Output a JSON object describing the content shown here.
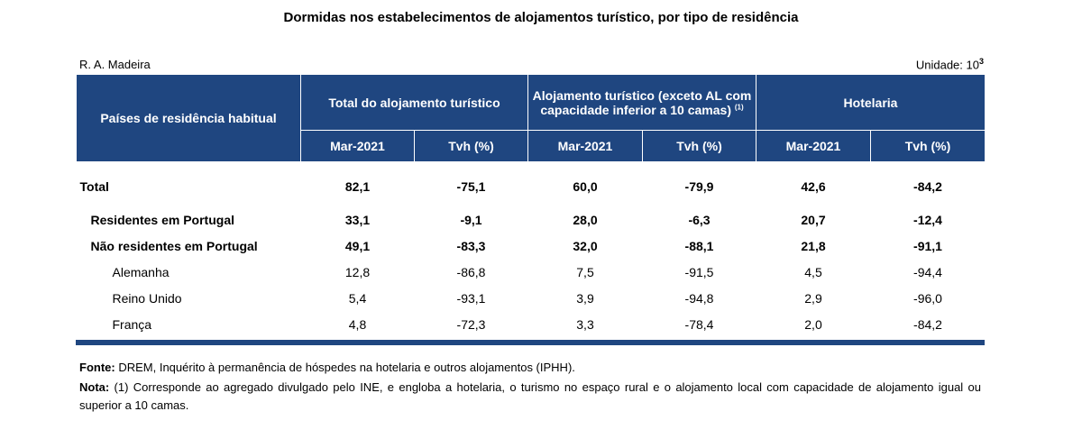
{
  "title": "Dormidas nos estabelecimentos de alojamentos turístico, por tipo de residência",
  "region": "R. A. Madeira",
  "unit": {
    "label": "Unidade: 10",
    "exponent": "3"
  },
  "header": {
    "row_label": "Países de residência habitual",
    "groups": [
      {
        "label": "Total do alojamento turístico",
        "note": ""
      },
      {
        "label": "Alojamento turístico (exceto AL com capacidade inferior a 10 camas)",
        "note": "(1)"
      },
      {
        "label": "Hotelaria",
        "note": ""
      }
    ],
    "subcols": [
      "Mar-2021",
      "Tvh (%)",
      "Mar-2021",
      "Tvh (%)",
      "Mar-2021",
      "Tvh (%)"
    ]
  },
  "rows": [
    {
      "label": "Total",
      "values": [
        "82,1",
        "-75,1",
        "60,0",
        "-79,9",
        "42,6",
        "-84,2"
      ]
    },
    {
      "label": "Residentes em Portugal",
      "values": [
        "33,1",
        "-9,1",
        "28,0",
        "-6,3",
        "20,7",
        "-12,4"
      ]
    },
    {
      "label": "Não residentes em Portugal",
      "values": [
        "49,1",
        "-83,3",
        "32,0",
        "-88,1",
        "21,8",
        "-91,1"
      ]
    },
    {
      "label": "Alemanha",
      "values": [
        "12,8",
        "-86,8",
        "7,5",
        "-91,5",
        "4,5",
        "-94,4"
      ]
    },
    {
      "label": "Reino Unido",
      "values": [
        "5,4",
        "-93,1",
        "3,9",
        "-94,8",
        "2,9",
        "-96,0"
      ]
    },
    {
      "label": "França",
      "values": [
        "4,8",
        "-72,3",
        "3,3",
        "-78,4",
        "2,0",
        "-84,2"
      ]
    }
  ],
  "footer": {
    "fonte_label": "Fonte:",
    "fonte_text": " DREM, Inquérito à permanência de hóspedes na hotelaria e outros alojamentos (IPHH).",
    "nota_label": "Nota:",
    "nota_text": " (1) Corresponde ao agregado divulgado pelo INE, e engloba a hotelaria, o turismo no espaço rural e o alojamento local com capacidade de alojamento igual ou superior a 10 camas."
  },
  "colors": {
    "header_bg": "#1f4680",
    "header_text": "#ffffff"
  }
}
